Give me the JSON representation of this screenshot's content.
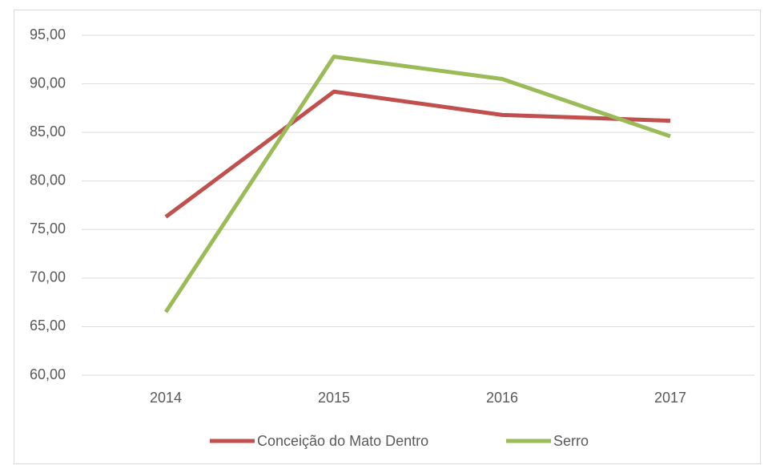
{
  "chart_data": {
    "type": "line",
    "categories": [
      "2014",
      "2015",
      "2016",
      "2017"
    ],
    "series": [
      {
        "name": "Conceição do Mato Dentro",
        "color": "#c0504d",
        "values": [
          76.3,
          89.2,
          86.8,
          86.2
        ]
      },
      {
        "name": "Serro",
        "color": "#9bbb59",
        "values": [
          66.5,
          92.8,
          90.5,
          84.6
        ]
      }
    ],
    "ylim": [
      60,
      95
    ],
    "yticks": [
      {
        "value": 60,
        "label": "60,00"
      },
      {
        "value": 65,
        "label": "65,00"
      },
      {
        "value": 70,
        "label": "70,00"
      },
      {
        "value": 75,
        "label": "75,00"
      },
      {
        "value": 80,
        "label": "80,00"
      },
      {
        "value": 85,
        "label": "85,00"
      },
      {
        "value": 90,
        "label": "90,00"
      },
      {
        "value": 95,
        "label": "95,00"
      }
    ],
    "grid": true,
    "legend": "bottom"
  }
}
